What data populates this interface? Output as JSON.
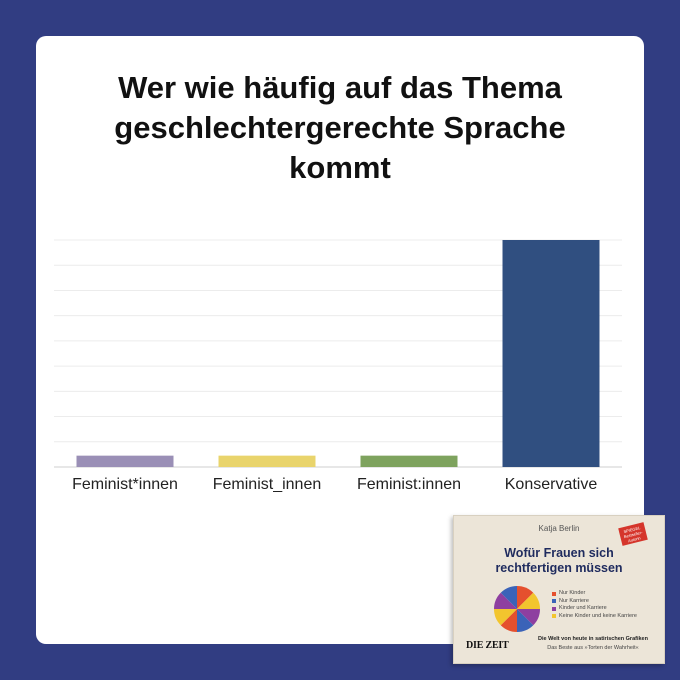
{
  "chart_data": {
    "type": "bar",
    "title_lines": [
      "Wer wie häufig auf das Thema",
      "geschlechtergerechte Sprache",
      "kommt"
    ],
    "categories": [
      "Feminist*innen",
      "Feminist_innen",
      "Feminist:innen",
      "Konservative"
    ],
    "values": [
      5,
      5,
      5,
      100
    ],
    "colors": [
      "#9a8fb6",
      "#e9d46c",
      "#7ea35e",
      "#304f80"
    ],
    "ylim": [
      0,
      100
    ],
    "xlabel": "",
    "ylabel": "",
    "grid": true,
    "legend": "none"
  },
  "book": {
    "author": "Katja Berlin",
    "badge": "SPIEGEL Bestseller-Autorin",
    "title_lines": [
      "Wofür Frauen sich",
      "rechtfertigen müssen"
    ],
    "legend": [
      {
        "label": "Nur Kinder",
        "color": "#e5502e"
      },
      {
        "label": "Nur Karriere",
        "color": "#3b63b8"
      },
      {
        "label": "Kinder und Karriere",
        "color": "#8e3fa0"
      },
      {
        "label": "Keine Kinder und keine Karriere",
        "color": "#f2c52e"
      }
    ],
    "pie_colors": [
      "#e5502e",
      "#f2c52e",
      "#8e3fa0",
      "#3b63b8"
    ],
    "logo": "DIE ZEIT",
    "subtitle": "Die Welt von heute in satirischen Grafiken",
    "subtitle2": "Das Beste aus »Torten der Wahrheit«"
  }
}
